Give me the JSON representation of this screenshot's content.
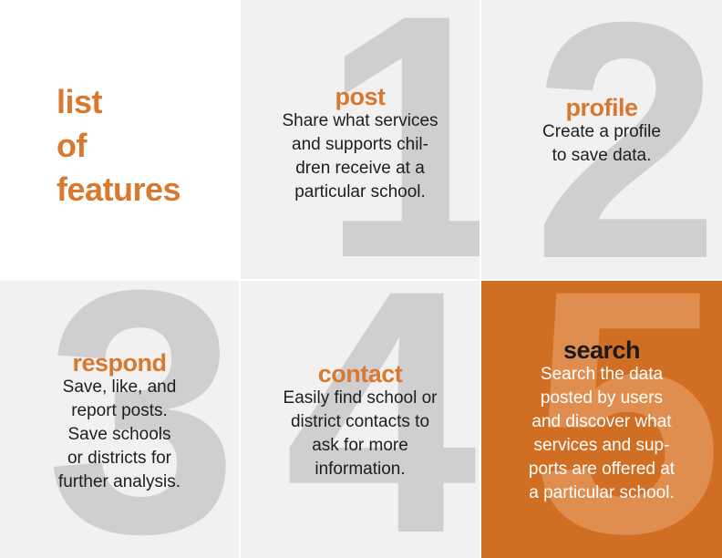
{
  "title": {
    "lines": [
      "list",
      "of",
      "features"
    ]
  },
  "features": [
    {
      "number": "1",
      "heading": "post",
      "description": "Share what services\nand supports chil-\ndren receive at a\nparticular school."
    },
    {
      "number": "2",
      "heading": "profile",
      "description": "Create a profile\nto save data."
    },
    {
      "number": "3",
      "heading": "respond",
      "description": "Save, like, and\nreport posts.\nSave schools\nor districts for\nfurther analysis."
    },
    {
      "number": "4",
      "heading": "contact",
      "description": "Easily find school or\ndistrict contacts to\nask for more\ninformation."
    },
    {
      "number": "5",
      "heading": "search",
      "description": "Search the data\nposted by users\nand discover what\nservices and sup-\nports are offered at\na particular school."
    }
  ],
  "colors": {
    "accent_orange": "#d9782f",
    "tile_orange": "#d06e24",
    "tile_gray": "#f1f1f1",
    "numeral_gray": "#cfcfd1"
  }
}
